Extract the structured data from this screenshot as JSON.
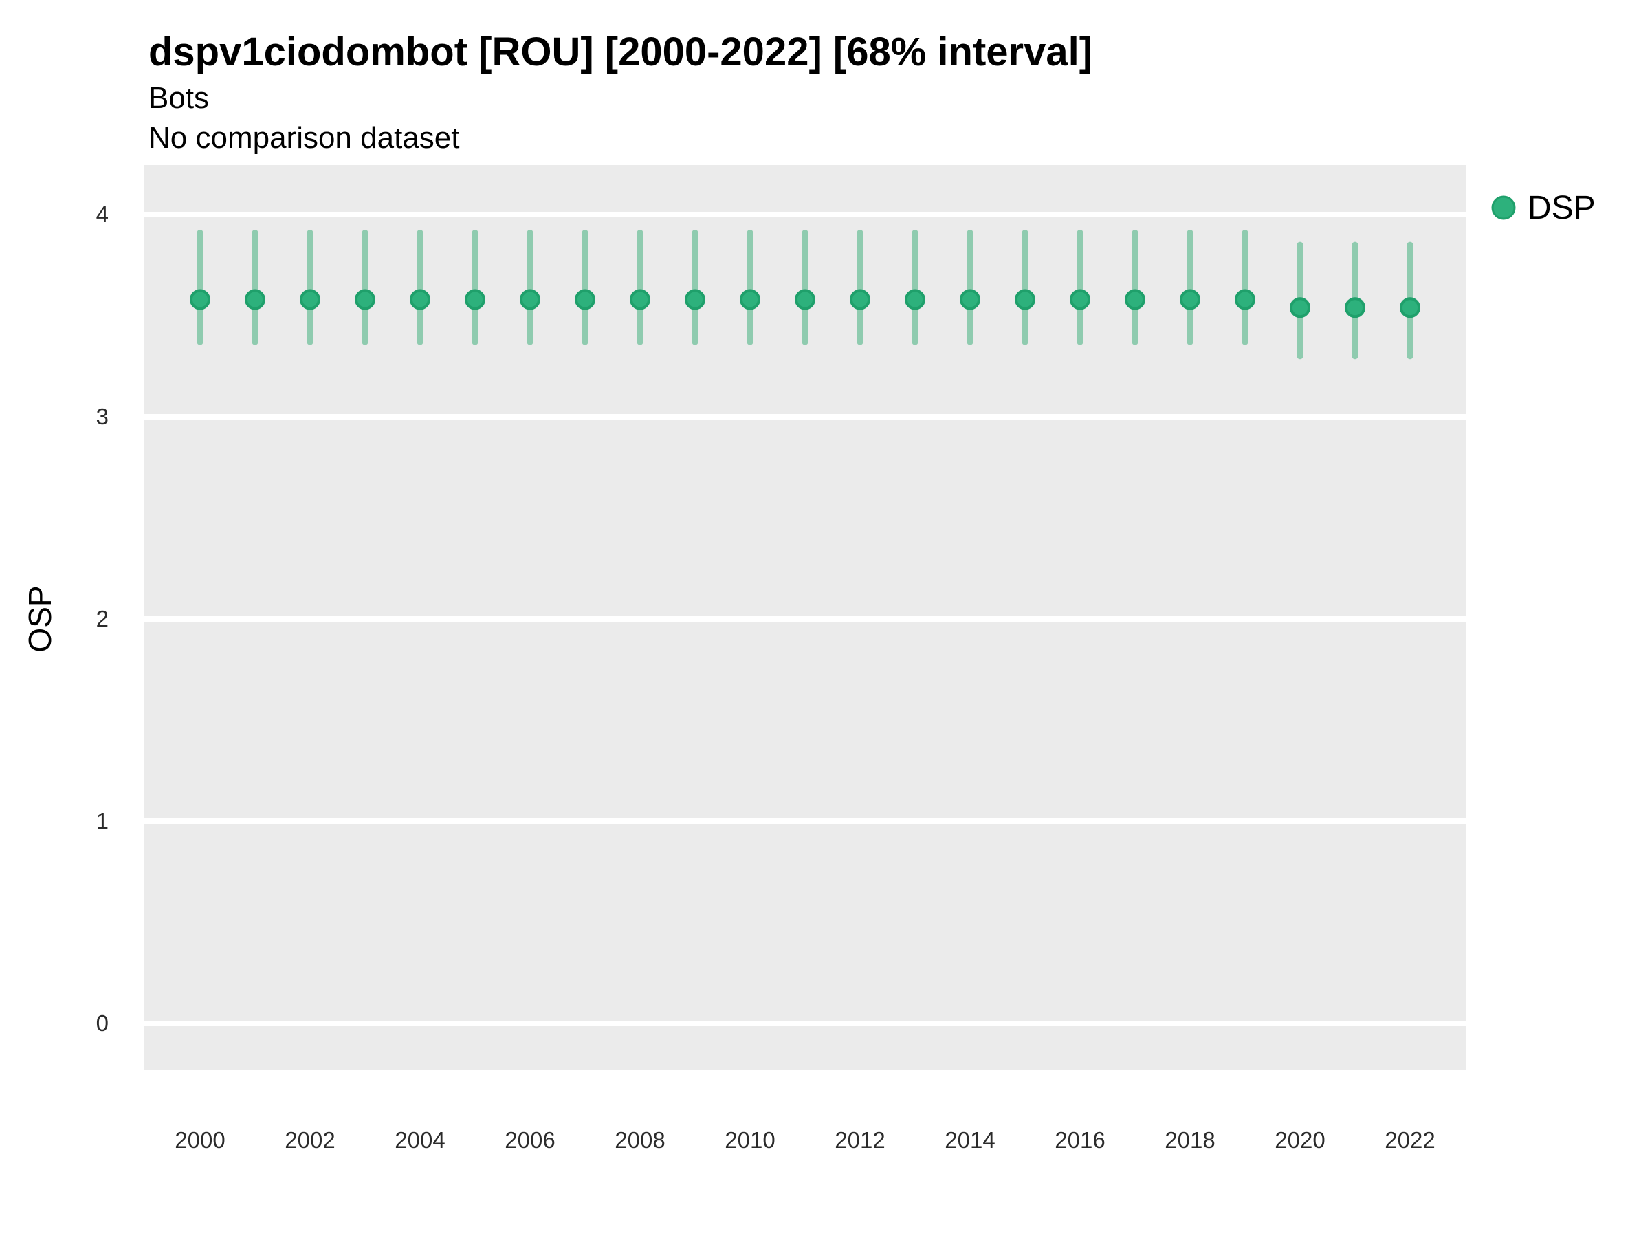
{
  "title": "dspv1ciodombot [ROU] [2000-2022] [68% interval]",
  "subtitle": "Bots",
  "subtitle2": "No comparison dataset",
  "legend": {
    "label": "DSP",
    "marker": "circle-icon"
  },
  "axes": {
    "y_label": "OSP",
    "y_ticks": [
      4,
      3,
      2,
      1,
      0
    ],
    "x_ticks": [
      2000,
      2002,
      2004,
      2006,
      2008,
      2010,
      2012,
      2014,
      2016,
      2018,
      2020,
      2022
    ]
  },
  "colors": {
    "point_fill": "#2DB17C",
    "point_stroke": "#1FA06B",
    "interval_bar": "#8FCBAF",
    "panel_background": "#EBEBEB",
    "gridline": "#FFFFFF"
  },
  "chart_data": {
    "type": "scatter",
    "subtype": "pointrange",
    "title": "dspv1ciodombot [ROU] [2000-2022] [68% interval]",
    "interval_level": "68%",
    "xlabel": "",
    "ylabel": "OSP",
    "ylim": [
      -0.24,
      4.24
    ],
    "x_tick_step": 2,
    "grid": "horizontal-major-only",
    "legend_position": "right",
    "x": [
      2000,
      2001,
      2002,
      2003,
      2004,
      2005,
      2006,
      2007,
      2008,
      2009,
      2010,
      2011,
      2012,
      2013,
      2014,
      2015,
      2016,
      2017,
      2018,
      2019,
      2020,
      2021,
      2022
    ],
    "series": [
      {
        "name": "DSP",
        "mid": [
          3.58,
          3.58,
          3.58,
          3.58,
          3.58,
          3.58,
          3.58,
          3.58,
          3.58,
          3.58,
          3.58,
          3.58,
          3.58,
          3.58,
          3.58,
          3.58,
          3.58,
          3.58,
          3.58,
          3.58,
          3.54,
          3.54,
          3.54
        ],
        "lower": [
          3.37,
          3.37,
          3.37,
          3.37,
          3.37,
          3.37,
          3.37,
          3.37,
          3.37,
          3.37,
          3.37,
          3.37,
          3.37,
          3.37,
          3.37,
          3.37,
          3.37,
          3.37,
          3.37,
          3.37,
          3.3,
          3.3,
          3.3
        ],
        "upper": [
          3.91,
          3.91,
          3.91,
          3.91,
          3.91,
          3.91,
          3.91,
          3.91,
          3.91,
          3.91,
          3.91,
          3.91,
          3.91,
          3.91,
          3.91,
          3.91,
          3.91,
          3.91,
          3.91,
          3.91,
          3.85,
          3.85,
          3.85
        ]
      }
    ]
  }
}
